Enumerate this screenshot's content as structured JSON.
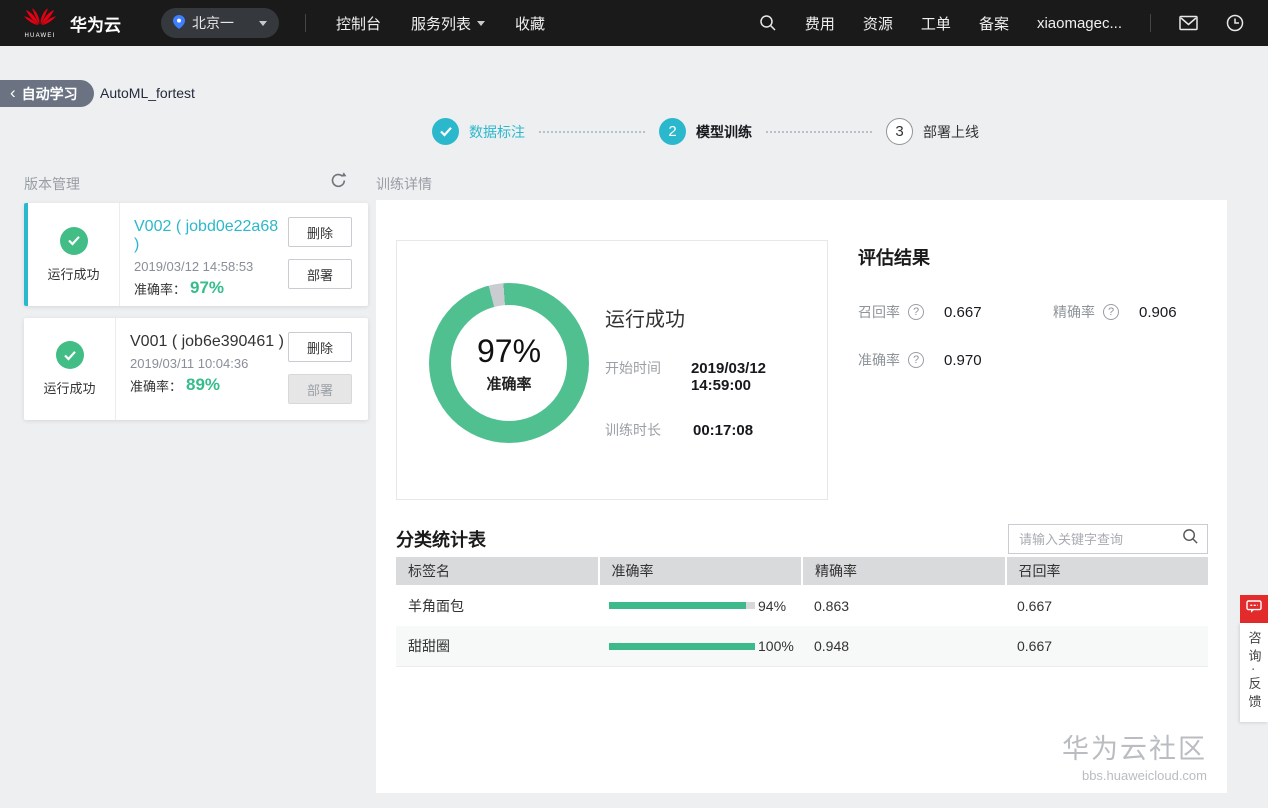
{
  "colors": {
    "accent": "#2cb8cc",
    "success": "#42bd86",
    "donut_green": "#50c091",
    "bar_green": "#3eb98c",
    "danger_red": "#e32b2b",
    "navbar_bg": "#1a1a1a",
    "crumb_bg": "#6b7383"
  },
  "navbar": {
    "logo_word": "HUAWEI",
    "brand": "华为云",
    "region": "北京一",
    "menu": [
      "控制台",
      "服务列表",
      "收藏"
    ],
    "right_menu": [
      "费用",
      "资源",
      "工单",
      "备案"
    ],
    "username": "xiaomagec..."
  },
  "breadcrumb": {
    "back_chevron": "‹",
    "back_label": "自动学习",
    "project": "AutoML_fortest"
  },
  "stepper": {
    "steps": [
      {
        "label": "数据标注",
        "state": "done"
      },
      {
        "label": "模型训练",
        "state": "active",
        "number": "2"
      },
      {
        "label": "部署上线",
        "state": "pending",
        "number": "3"
      }
    ]
  },
  "versions": {
    "title": "版本管理",
    "cards": [
      {
        "status": "运行成功",
        "name": "V002 ( jobd0e22a68 )",
        "date": "2019/03/12 14:58:53",
        "acc_label": "准确率：",
        "accuracy": "97%",
        "delete_label": "删除",
        "deploy_label": "部署"
      },
      {
        "status": "运行成功",
        "name": "V001 ( job6e390461 )",
        "date": "2019/03/11 10:04:36",
        "acc_label": "准确率：",
        "accuracy": "89%",
        "delete_label": "删除",
        "deploy_label": "部署"
      }
    ]
  },
  "details": {
    "title": "训练详情",
    "donut": {
      "percent": "97%",
      "percent_value": 97,
      "label": "准确率"
    },
    "run_status": "运行成功",
    "rows": [
      {
        "label": "开始时间",
        "value": "2019/03/12 14:59:00"
      },
      {
        "label": "训练时长",
        "value": "00:17:08"
      }
    ]
  },
  "evaluation": {
    "title": "评估结果",
    "metrics": [
      {
        "label": "召回率",
        "value": "0.667"
      },
      {
        "label": "精确率",
        "value": "0.906"
      },
      {
        "label": "准确率",
        "value": "0.970"
      }
    ]
  },
  "table": {
    "title": "分类统计表",
    "search_placeholder": "请输入关键字查询",
    "headers": [
      "标签名",
      "准确率",
      "精确率",
      "召回率"
    ],
    "rows": [
      {
        "label": "羊角面包",
        "accuracy_pct": 94,
        "accuracy_text": "94%",
        "precision": "0.863",
        "recall": "0.667"
      },
      {
        "label": "甜甜圈",
        "accuracy_pct": 100,
        "accuracy_text": "100%",
        "precision": "0.948",
        "recall": "0.667"
      }
    ]
  },
  "feedback": {
    "vertical_text": "咨询·反馈"
  },
  "watermark": {
    "title": "华为云社区",
    "url": "bbs.huaweicloud.com"
  }
}
